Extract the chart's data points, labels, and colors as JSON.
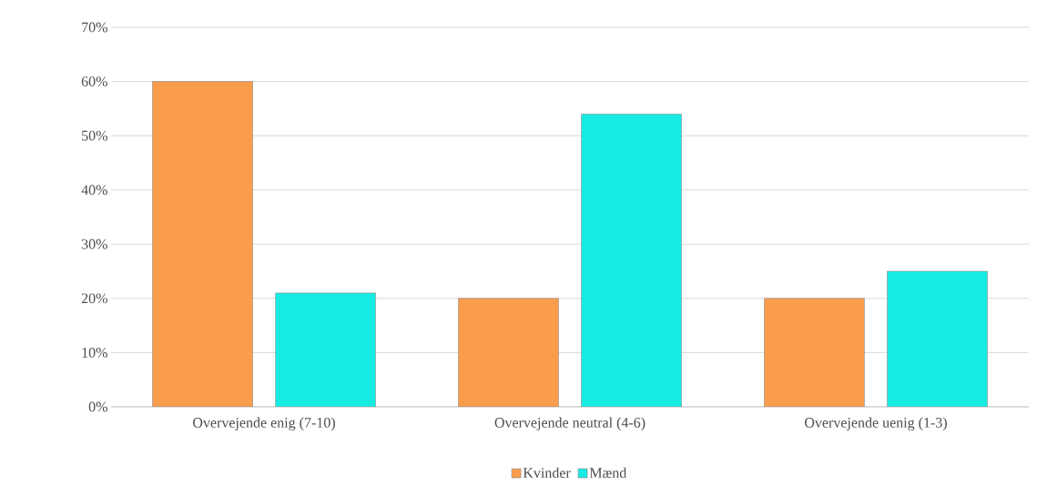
{
  "chart_data": {
    "type": "bar",
    "categories": [
      "Overvejende enig (7-10)",
      "Overvejende neutral (4-6)",
      "Overvejende uenig (1-3)"
    ],
    "series": [
      {
        "name": "Kvinder",
        "color": "#f99d4c",
        "values": [
          60,
          20,
          20
        ]
      },
      {
        "name": "Mænd",
        "color": "#18ebe2",
        "values": [
          21,
          54,
          25
        ]
      }
    ],
    "ylim": [
      0,
      70
    ],
    "yticks": [
      {
        "value": 0,
        "label": "0%"
      },
      {
        "value": 10,
        "label": "10%"
      },
      {
        "value": 20,
        "label": "20%"
      },
      {
        "value": 30,
        "label": "30%"
      },
      {
        "value": 40,
        "label": "40%"
      },
      {
        "value": 50,
        "label": "50%"
      },
      {
        "value": 60,
        "label": "60%"
      },
      {
        "value": 70,
        "label": "70%"
      }
    ],
    "grid": "y",
    "legend": "bottom"
  }
}
